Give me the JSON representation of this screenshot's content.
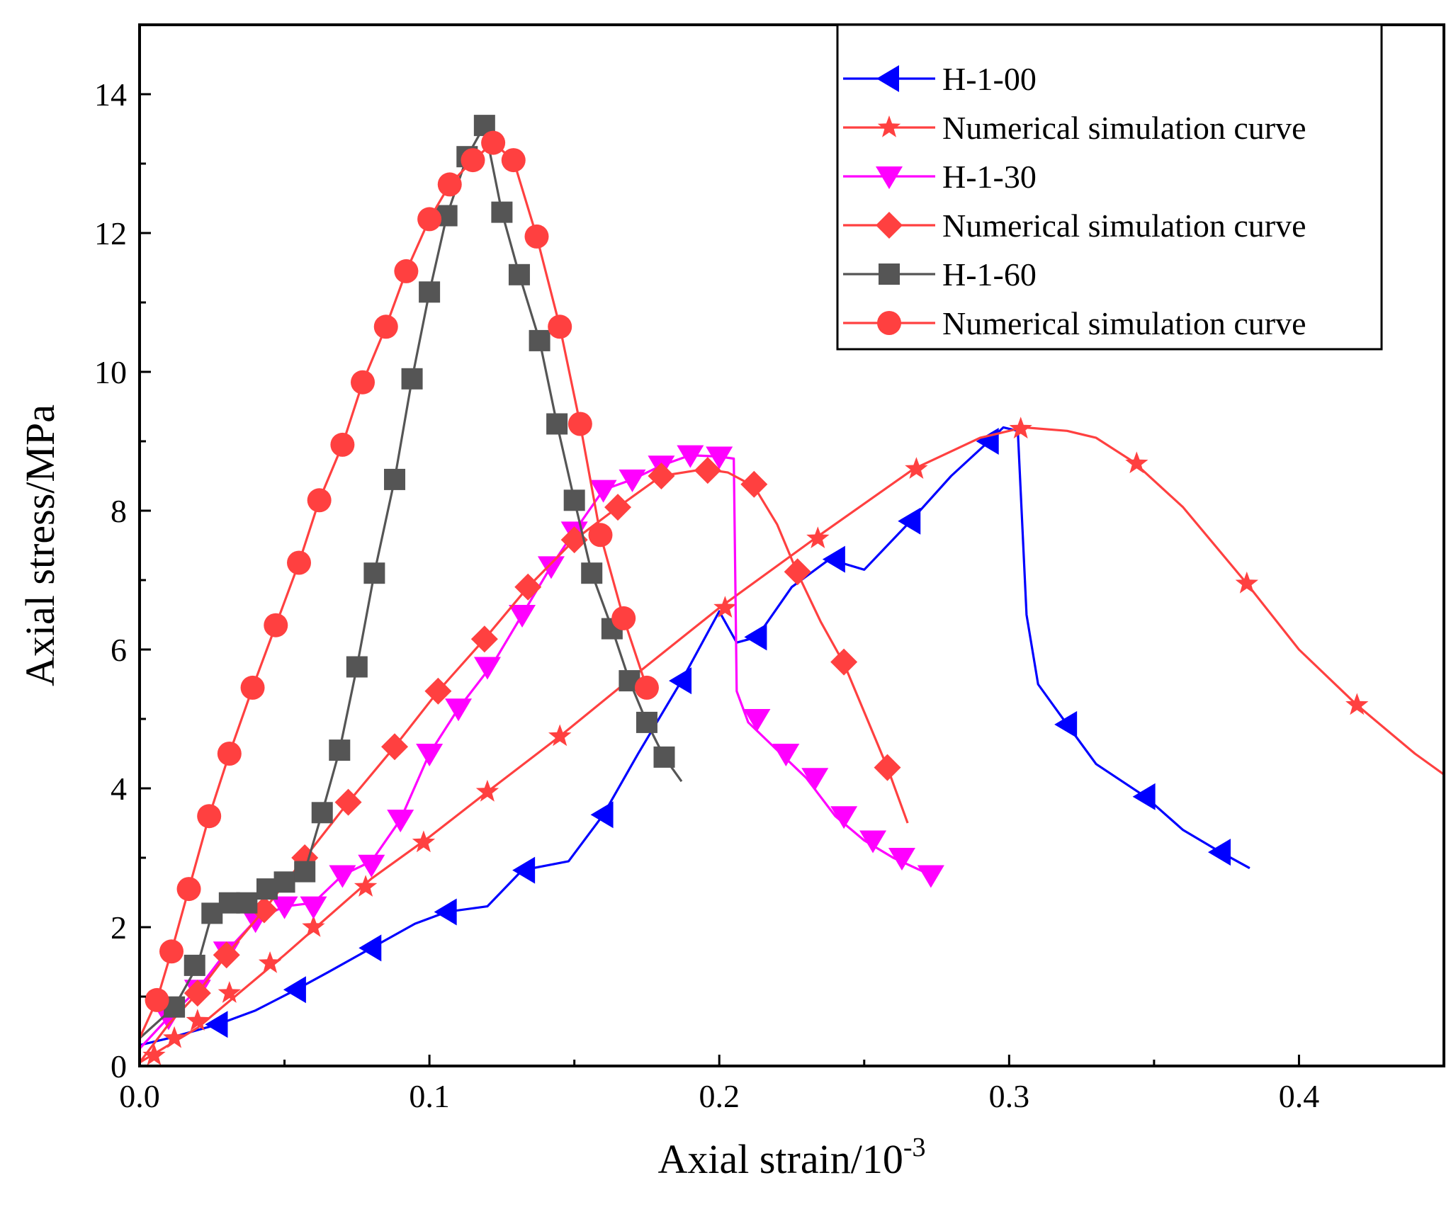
{
  "chart_data": {
    "type": "line",
    "title": "",
    "xlabel": "Axial strain/10",
    "xlabel_sup": "-3",
    "ylabel": "Axial stress/MPa",
    "xlim": [
      0,
      0.45
    ],
    "ylim": [
      0,
      15
    ],
    "x_ticks": [
      0.0,
      0.1,
      0.2,
      0.3,
      0.4
    ],
    "x_tick_labels": [
      "0.0",
      "0.1",
      "0.2",
      "0.3",
      "0.4"
    ],
    "y_ticks": [
      0,
      2,
      4,
      6,
      8,
      10,
      12,
      14
    ],
    "y_tick_labels": [
      "0",
      "2",
      "4",
      "6",
      "8",
      "10",
      "12",
      "14"
    ],
    "grid": false,
    "legend_position": "top-right",
    "series": [
      {
        "name": "H-1-00",
        "color": "#0000ff",
        "marker": "triangle-left",
        "line": [
          [
            0,
            0.3
          ],
          [
            0.01,
            0.4
          ],
          [
            0.027,
            0.6
          ],
          [
            0.04,
            0.8
          ],
          [
            0.054,
            1.1
          ],
          [
            0.065,
            1.35
          ],
          [
            0.08,
            1.7
          ],
          [
            0.095,
            2.05
          ],
          [
            0.106,
            2.22
          ],
          [
            0.12,
            2.3
          ],
          [
            0.132,
            2.82
          ],
          [
            0.148,
            2.95
          ],
          [
            0.16,
            3.62
          ],
          [
            0.172,
            4.5
          ],
          [
            0.187,
            5.55
          ],
          [
            0.2,
            6.55
          ],
          [
            0.206,
            6.1
          ],
          [
            0.213,
            6.18
          ],
          [
            0.225,
            6.9
          ],
          [
            0.238,
            7.3
          ],
          [
            0.25,
            7.15
          ],
          [
            0.266,
            7.85
          ],
          [
            0.28,
            8.5
          ],
          [
            0.293,
            9.0
          ],
          [
            0.298,
            9.2
          ],
          [
            0.303,
            9.15
          ],
          [
            0.306,
            6.5
          ],
          [
            0.31,
            5.5
          ],
          [
            0.32,
            4.92
          ],
          [
            0.33,
            4.35
          ],
          [
            0.347,
            3.88
          ],
          [
            0.36,
            3.4
          ],
          [
            0.373,
            3.08
          ],
          [
            0.383,
            2.85
          ]
        ],
        "markers": [
          [
            0.027,
            0.6
          ],
          [
            0.054,
            1.1
          ],
          [
            0.08,
            1.7
          ],
          [
            0.106,
            2.22
          ],
          [
            0.133,
            2.82
          ],
          [
            0.16,
            3.62
          ],
          [
            0.187,
            5.55
          ],
          [
            0.213,
            6.18
          ],
          [
            0.24,
            7.3
          ],
          [
            0.266,
            7.85
          ],
          [
            0.293,
            9.0
          ],
          [
            0.32,
            4.92
          ],
          [
            0.347,
            3.88
          ],
          [
            0.373,
            3.08
          ]
        ]
      },
      {
        "name": "Numerical simulation curve",
        "color": "#ff4040",
        "marker": "star",
        "line": [
          [
            0,
            0.05
          ],
          [
            0.02,
            0.55
          ],
          [
            0.05,
            1.6
          ],
          [
            0.08,
            2.7
          ],
          [
            0.1,
            3.3
          ],
          [
            0.12,
            3.95
          ],
          [
            0.145,
            4.75
          ],
          [
            0.17,
            5.6
          ],
          [
            0.2,
            6.6
          ],
          [
            0.233,
            7.6
          ],
          [
            0.267,
            8.6
          ],
          [
            0.29,
            9.05
          ],
          [
            0.305,
            9.2
          ],
          [
            0.32,
            9.15
          ],
          [
            0.33,
            9.05
          ],
          [
            0.343,
            8.7
          ],
          [
            0.36,
            8.05
          ],
          [
            0.382,
            6.95
          ],
          [
            0.4,
            6.0
          ],
          [
            0.42,
            5.2
          ],
          [
            0.44,
            4.5
          ],
          [
            0.45,
            4.2
          ]
        ],
        "markers": [
          [
            0.005,
            0.15
          ],
          [
            0.012,
            0.4
          ],
          [
            0.02,
            0.65
          ],
          [
            0.031,
            1.05
          ],
          [
            0.045,
            1.48
          ],
          [
            0.06,
            2.0
          ],
          [
            0.078,
            2.58
          ],
          [
            0.098,
            3.22
          ],
          [
            0.12,
            3.95
          ],
          [
            0.145,
            4.75
          ],
          [
            0.202,
            6.6
          ],
          [
            0.234,
            7.6
          ],
          [
            0.268,
            8.6
          ],
          [
            0.304,
            9.18
          ],
          [
            0.344,
            8.68
          ],
          [
            0.382,
            6.95
          ],
          [
            0.42,
            5.2
          ]
        ]
      },
      {
        "name": "H-1-30",
        "color": "#ff00ff",
        "marker": "triangle-down",
        "line": [
          [
            0,
            0.25
          ],
          [
            0.01,
            0.7
          ],
          [
            0.02,
            1.1
          ],
          [
            0.03,
            1.65
          ],
          [
            0.04,
            2.1
          ],
          [
            0.05,
            2.3
          ],
          [
            0.06,
            2.35
          ],
          [
            0.07,
            2.75
          ],
          [
            0.08,
            2.95
          ],
          [
            0.09,
            3.55
          ],
          [
            0.1,
            4.5
          ],
          [
            0.11,
            5.15
          ],
          [
            0.122,
            5.8
          ],
          [
            0.132,
            6.5
          ],
          [
            0.142,
            7.2
          ],
          [
            0.15,
            7.7
          ],
          [
            0.16,
            8.3
          ],
          [
            0.17,
            8.45
          ],
          [
            0.18,
            8.65
          ],
          [
            0.19,
            8.8
          ],
          [
            0.2,
            8.78
          ],
          [
            0.205,
            8.75
          ],
          [
            0.206,
            5.4
          ],
          [
            0.21,
            4.95
          ],
          [
            0.22,
            4.55
          ],
          [
            0.23,
            4.15
          ],
          [
            0.24,
            3.6
          ],
          [
            0.25,
            3.25
          ],
          [
            0.26,
            3.0
          ],
          [
            0.273,
            2.75
          ]
        ],
        "markers": [
          [
            0.01,
            0.7
          ],
          [
            0.02,
            1.1
          ],
          [
            0.03,
            1.65
          ],
          [
            0.04,
            2.1
          ],
          [
            0.05,
            2.3
          ],
          [
            0.06,
            2.3
          ],
          [
            0.07,
            2.75
          ],
          [
            0.08,
            2.9
          ],
          [
            0.09,
            3.55
          ],
          [
            0.1,
            4.5
          ],
          [
            0.11,
            5.15
          ],
          [
            0.12,
            5.75
          ],
          [
            0.132,
            6.5
          ],
          [
            0.142,
            7.2
          ],
          [
            0.15,
            7.7
          ],
          [
            0.16,
            8.3
          ],
          [
            0.17,
            8.45
          ],
          [
            0.18,
            8.65
          ],
          [
            0.19,
            8.8
          ],
          [
            0.2,
            8.78
          ],
          [
            0.213,
            5.0
          ],
          [
            0.223,
            4.5
          ],
          [
            0.233,
            4.15
          ],
          [
            0.243,
            3.6
          ],
          [
            0.253,
            3.25
          ],
          [
            0.263,
            3.0
          ],
          [
            0.273,
            2.75
          ]
        ]
      },
      {
        "name": "Numerical simulation curve",
        "color": "#ff4040",
        "marker": "diamond",
        "line": [
          [
            0,
            0.05
          ],
          [
            0.01,
            0.6
          ],
          [
            0.02,
            1.05
          ],
          [
            0.03,
            1.6
          ],
          [
            0.043,
            2.25
          ],
          [
            0.057,
            3.0
          ],
          [
            0.072,
            3.8
          ],
          [
            0.088,
            4.6
          ],
          [
            0.103,
            5.4
          ],
          [
            0.119,
            6.15
          ],
          [
            0.134,
            6.9
          ],
          [
            0.15,
            7.58
          ],
          [
            0.165,
            8.05
          ],
          [
            0.18,
            8.5
          ],
          [
            0.195,
            8.6
          ],
          [
            0.203,
            8.55
          ],
          [
            0.212,
            8.35
          ],
          [
            0.22,
            7.8
          ],
          [
            0.227,
            7.1
          ],
          [
            0.235,
            6.4
          ],
          [
            0.243,
            5.8
          ],
          [
            0.25,
            5.1
          ],
          [
            0.258,
            4.3
          ],
          [
            0.265,
            3.5
          ]
        ],
        "markers": [
          [
            0.02,
            1.05
          ],
          [
            0.03,
            1.6
          ],
          [
            0.043,
            2.25
          ],
          [
            0.057,
            3.0
          ],
          [
            0.072,
            3.8
          ],
          [
            0.088,
            4.6
          ],
          [
            0.103,
            5.4
          ],
          [
            0.119,
            6.15
          ],
          [
            0.134,
            6.9
          ],
          [
            0.15,
            7.58
          ],
          [
            0.165,
            8.05
          ],
          [
            0.18,
            8.5
          ],
          [
            0.196,
            8.58
          ],
          [
            0.212,
            8.38
          ],
          [
            0.227,
            7.12
          ],
          [
            0.243,
            5.82
          ],
          [
            0.258,
            4.3
          ]
        ]
      },
      {
        "name": "H-1-60",
        "color": "#555555",
        "marker": "square",
        "line": [
          [
            0,
            0.4
          ],
          [
            0.012,
            0.85
          ],
          [
            0.02,
            1.45
          ],
          [
            0.025,
            2.2
          ],
          [
            0.031,
            2.35
          ],
          [
            0.037,
            2.35
          ],
          [
            0.044,
            2.55
          ],
          [
            0.05,
            2.65
          ],
          [
            0.057,
            2.8
          ],
          [
            0.063,
            3.65
          ],
          [
            0.069,
            4.55
          ],
          [
            0.075,
            5.75
          ],
          [
            0.081,
            7.1
          ],
          [
            0.088,
            8.45
          ],
          [
            0.094,
            9.9
          ],
          [
            0.1,
            11.15
          ],
          [
            0.106,
            12.25
          ],
          [
            0.113,
            13.1
          ],
          [
            0.119,
            13.55
          ],
          [
            0.125,
            12.3
          ],
          [
            0.131,
            11.4
          ],
          [
            0.138,
            10.45
          ],
          [
            0.144,
            9.25
          ],
          [
            0.15,
            8.15
          ],
          [
            0.156,
            7.1
          ],
          [
            0.163,
            6.3
          ],
          [
            0.169,
            5.55
          ],
          [
            0.175,
            4.95
          ],
          [
            0.181,
            4.45
          ],
          [
            0.187,
            4.1
          ]
        ],
        "markers": [
          [
            0.012,
            0.85
          ],
          [
            0.019,
            1.45
          ],
          [
            0.025,
            2.2
          ],
          [
            0.031,
            2.35
          ],
          [
            0.037,
            2.35
          ],
          [
            0.044,
            2.55
          ],
          [
            0.05,
            2.65
          ],
          [
            0.057,
            2.8
          ],
          [
            0.063,
            3.65
          ],
          [
            0.069,
            4.55
          ],
          [
            0.075,
            5.75
          ],
          [
            0.081,
            7.1
          ],
          [
            0.088,
            8.45
          ],
          [
            0.094,
            9.9
          ],
          [
            0.1,
            11.15
          ],
          [
            0.106,
            12.25
          ],
          [
            0.113,
            13.1
          ],
          [
            0.119,
            13.55
          ],
          [
            0.125,
            12.3
          ],
          [
            0.131,
            11.4
          ],
          [
            0.138,
            10.45
          ],
          [
            0.144,
            9.25
          ],
          [
            0.15,
            8.15
          ],
          [
            0.156,
            7.1
          ],
          [
            0.163,
            6.3
          ],
          [
            0.169,
            5.55
          ],
          [
            0.175,
            4.95
          ],
          [
            0.181,
            4.45
          ]
        ]
      },
      {
        "name": "Numerical simulation curve",
        "color": "#ff4040",
        "marker": "circle",
        "line": [
          [
            0,
            0.4
          ],
          [
            0.006,
            0.95
          ],
          [
            0.011,
            1.65
          ],
          [
            0.017,
            2.55
          ],
          [
            0.024,
            3.6
          ],
          [
            0.031,
            4.5
          ],
          [
            0.039,
            5.45
          ],
          [
            0.047,
            6.35
          ],
          [
            0.055,
            7.25
          ],
          [
            0.062,
            8.15
          ],
          [
            0.07,
            8.95
          ],
          [
            0.077,
            9.85
          ],
          [
            0.085,
            10.65
          ],
          [
            0.092,
            11.45
          ],
          [
            0.1,
            12.2
          ],
          [
            0.107,
            12.7
          ],
          [
            0.115,
            13.05
          ],
          [
            0.122,
            13.3
          ],
          [
            0.129,
            13.05
          ],
          [
            0.137,
            11.95
          ],
          [
            0.145,
            10.65
          ],
          [
            0.152,
            9.25
          ],
          [
            0.159,
            7.65
          ],
          [
            0.167,
            6.45
          ],
          [
            0.175,
            5.45
          ]
        ],
        "markers": [
          [
            0.006,
            0.95
          ],
          [
            0.011,
            1.65
          ],
          [
            0.017,
            2.55
          ],
          [
            0.024,
            3.6
          ],
          [
            0.031,
            4.5
          ],
          [
            0.039,
            5.45
          ],
          [
            0.047,
            6.35
          ],
          [
            0.055,
            7.25
          ],
          [
            0.062,
            8.15
          ],
          [
            0.07,
            8.95
          ],
          [
            0.077,
            9.85
          ],
          [
            0.085,
            10.65
          ],
          [
            0.092,
            11.45
          ],
          [
            0.1,
            12.2
          ],
          [
            0.107,
            12.7
          ],
          [
            0.115,
            13.05
          ],
          [
            0.122,
            13.3
          ],
          [
            0.129,
            13.05
          ],
          [
            0.137,
            11.95
          ],
          [
            0.145,
            10.65
          ],
          [
            0.152,
            9.25
          ],
          [
            0.159,
            7.65
          ],
          [
            0.167,
            6.45
          ],
          [
            0.175,
            5.45
          ]
        ]
      }
    ]
  }
}
